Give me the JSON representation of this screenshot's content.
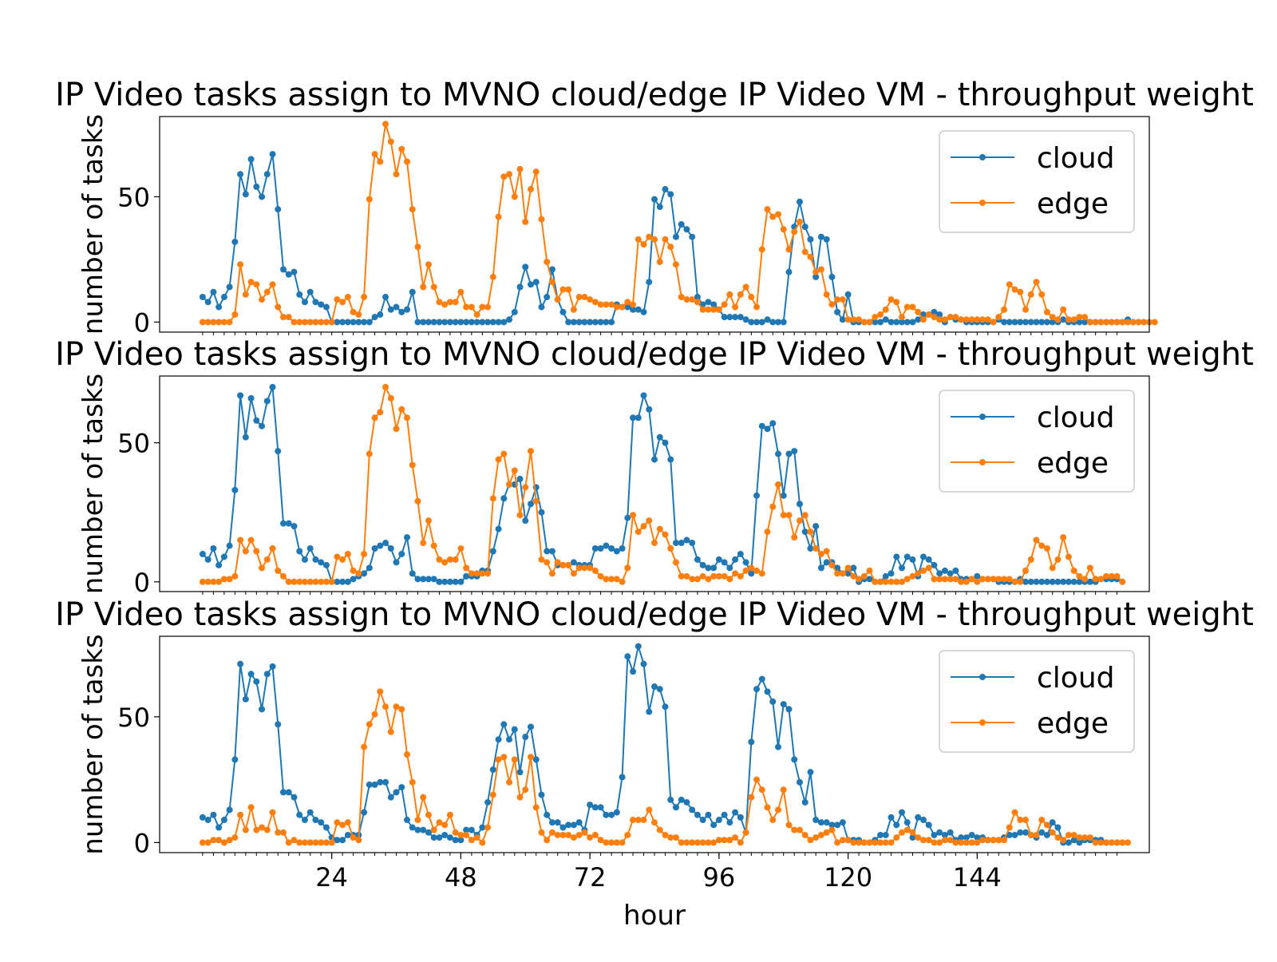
{
  "chart_data": [
    {
      "type": "line",
      "title": "IP Video tasks assign to MVNO cloud/edge IP Video VM - throughput weight",
      "ylabel": "number of tasks",
      "xlabel": "",
      "ylim": [
        -4,
        82
      ],
      "yticks": [
        0,
        50
      ],
      "xlim": [
        -8,
        176
      ],
      "legend": "upper right",
      "series": [
        {
          "name": "cloud",
          "color": "#1f77b4",
          "values": [
            10,
            8,
            12,
            6,
            10,
            14,
            32,
            59,
            51,
            65,
            54,
            50,
            59,
            67,
            45,
            21,
            19,
            20,
            11,
            8,
            12,
            8,
            7,
            6,
            0,
            0,
            0,
            0,
            0,
            0,
            0,
            0,
            2,
            3,
            10,
            5,
            6,
            4,
            5,
            12,
            0,
            0,
            0,
            0,
            0,
            0,
            0,
            0,
            0,
            0,
            0,
            0,
            0,
            0,
            0,
            0,
            0,
            1,
            4,
            14,
            22,
            15,
            16,
            6,
            10,
            21,
            9,
            4,
            0,
            0,
            0,
            0,
            0,
            0,
            0,
            0,
            0,
            7,
            6,
            6,
            5,
            5,
            4,
            16,
            49,
            46,
            53,
            51,
            34,
            39,
            37,
            34,
            10,
            7,
            8,
            7,
            5,
            2,
            2,
            2,
            2,
            1,
            0,
            0,
            0,
            1,
            0,
            0,
            0,
            20,
            38,
            48,
            38,
            33,
            18,
            34,
            33,
            18,
            4,
            1,
            11,
            0,
            0,
            0,
            0,
            0,
            0,
            1,
            0,
            0,
            0,
            0,
            0,
            1,
            3,
            3,
            4,
            3,
            0,
            2,
            1,
            1,
            0,
            0,
            0,
            0,
            0,
            0,
            1,
            0,
            0,
            0,
            0,
            0,
            0,
            0,
            0,
            0,
            0,
            0,
            1,
            0,
            0,
            0,
            0,
            0,
            0,
            0,
            0,
            0,
            0,
            0,
            1,
            0,
            0,
            0
          ]
        },
        {
          "name": "edge",
          "color": "#ff7f0e",
          "values": [
            0,
            0,
            0,
            0,
            0,
            0,
            3,
            23,
            11,
            16,
            15,
            9,
            12,
            15,
            6,
            2,
            2,
            0,
            0,
            0,
            0,
            0,
            0,
            0,
            0,
            9,
            8,
            10,
            4,
            3,
            10,
            49,
            67,
            64,
            79,
            72,
            59,
            69,
            64,
            45,
            30,
            14,
            23,
            14,
            8,
            7,
            8,
            8,
            12,
            6,
            6,
            3,
            6,
            6,
            18,
            42,
            58,
            59,
            50,
            61,
            40,
            53,
            60,
            41,
            24,
            16,
            9,
            13,
            13,
            5,
            10,
            10,
            9,
            8,
            7,
            7,
            7,
            6,
            6,
            8,
            7,
            33,
            31,
            34,
            33,
            24,
            33,
            30,
            23,
            10,
            9,
            9,
            8,
            5,
            5,
            5,
            5,
            7,
            11,
            6,
            11,
            14,
            10,
            6,
            29,
            45,
            42,
            43,
            37,
            29,
            36,
            40,
            28,
            26,
            20,
            21,
            11,
            7,
            9,
            9,
            1,
            1,
            1,
            0,
            0,
            2,
            3,
            5,
            9,
            8,
            2,
            6,
            6,
            4,
            1,
            3,
            2,
            1,
            1,
            2,
            2,
            1,
            1,
            1,
            1,
            1,
            1,
            0,
            2,
            5,
            15,
            13,
            12,
            5,
            11,
            16,
            11,
            4,
            2,
            1,
            5,
            1,
            1,
            2,
            2,
            0,
            0,
            0,
            0,
            0,
            0,
            0,
            0,
            0,
            0,
            0,
            0,
            0
          ]
        }
      ]
    },
    {
      "type": "line",
      "title": "IP Video tasks assign to MVNO cloud/edge IP Video VM - throughput weight",
      "ylabel": "number of tasks",
      "xlabel": "",
      "ylim": [
        -3.5,
        74
      ],
      "yticks": [
        0,
        50
      ],
      "xlim": [
        -8,
        176
      ],
      "legend": "upper right",
      "series": [
        {
          "name": "cloud",
          "color": "#1f77b4",
          "values": [
            10,
            8,
            12,
            6,
            9,
            13,
            33,
            67,
            52,
            66,
            58,
            56,
            65,
            70,
            47,
            21,
            21,
            20,
            11,
            8,
            12,
            8,
            7,
            6,
            0,
            0,
            0,
            0,
            1,
            2,
            3,
            5,
            12,
            13,
            14,
            12,
            7,
            10,
            16,
            3,
            1,
            1,
            1,
            1,
            0,
            0,
            0,
            0,
            0,
            2,
            2,
            2,
            4,
            4,
            11,
            19,
            30,
            35,
            35,
            37,
            22,
            28,
            34,
            25,
            11,
            11,
            6,
            6,
            6,
            7,
            6,
            6,
            6,
            12,
            12,
            13,
            12,
            11,
            12,
            23,
            59,
            59,
            67,
            62,
            44,
            52,
            50,
            44,
            14,
            14,
            15,
            14,
            8,
            6,
            5,
            5,
            8,
            7,
            5,
            8,
            10,
            7,
            3,
            31,
            56,
            55,
            57,
            46,
            31,
            46,
            47,
            28,
            18,
            12,
            20,
            5,
            7,
            7,
            5,
            3,
            3,
            5,
            0,
            1,
            1,
            0,
            0,
            2,
            3,
            9,
            5,
            9,
            8,
            2,
            9,
            8,
            6,
            3,
            4,
            3,
            4,
            1,
            1,
            1,
            2,
            1,
            1,
            1,
            0,
            0,
            0,
            0,
            1,
            0,
            0,
            0,
            0,
            0,
            0,
            0,
            0,
            0,
            0,
            0,
            0,
            0,
            0,
            1,
            1,
            1,
            1,
            0
          ]
        },
        {
          "name": "edge",
          "color": "#ff7f0e",
          "values": [
            0,
            0,
            0,
            0,
            1,
            1,
            2,
            15,
            11,
            15,
            11,
            5,
            8,
            12,
            4,
            2,
            0,
            0,
            0,
            0,
            0,
            0,
            0,
            0,
            0,
            9,
            8,
            10,
            4,
            3,
            10,
            46,
            59,
            61,
            70,
            66,
            55,
            62,
            59,
            42,
            29,
            14,
            22,
            13,
            8,
            7,
            8,
            8,
            12,
            5,
            3,
            3,
            3,
            3,
            30,
            44,
            46,
            35,
            40,
            24,
            34,
            47,
            29,
            8,
            7,
            3,
            7,
            6,
            6,
            3,
            5,
            5,
            5,
            4,
            2,
            1,
            1,
            1,
            0,
            5,
            24,
            18,
            20,
            22,
            14,
            19,
            17,
            12,
            7,
            2,
            2,
            1,
            1,
            2,
            1,
            2,
            2,
            2,
            1,
            3,
            2,
            4,
            5,
            4,
            3,
            18,
            27,
            35,
            24,
            24,
            16,
            22,
            24,
            18,
            12,
            10,
            11,
            6,
            3,
            3,
            5,
            2,
            1,
            2,
            4,
            0,
            0,
            0,
            0,
            0,
            0,
            1,
            2,
            3,
            4,
            5,
            1,
            1,
            1,
            1,
            1,
            0,
            0,
            1,
            0,
            1,
            1,
            1,
            1,
            1,
            1,
            0,
            0,
            4,
            8,
            15,
            13,
            12,
            5,
            8,
            16,
            9,
            4,
            2,
            1,
            5,
            1,
            1,
            2,
            2,
            2,
            0
          ]
        }
      ]
    },
    {
      "type": "line",
      "title": "IP Video tasks assign to MVNO cloud/edge IP Video VM - throughput weight",
      "ylabel": "number of tasks",
      "xlabel": "hour",
      "ylim": [
        -4,
        82
      ],
      "yticks": [
        0,
        50
      ],
      "xticks": [
        24,
        48,
        72,
        96,
        120,
        144
      ],
      "xlim": [
        -8,
        176
      ],
      "legend": "upper right",
      "series": [
        {
          "name": "cloud",
          "color": "#1f77b4",
          "values": [
            10,
            9,
            11,
            6,
            9,
            13,
            33,
            71,
            57,
            67,
            64,
            53,
            67,
            70,
            47,
            20,
            20,
            18,
            11,
            9,
            12,
            9,
            8,
            6,
            2,
            1,
            1,
            3,
            3,
            3,
            12,
            23,
            23,
            24,
            24,
            18,
            20,
            22,
            9,
            6,
            5,
            5,
            4,
            2,
            2,
            3,
            2,
            1,
            1,
            5,
            5,
            3,
            6,
            16,
            29,
            41,
            47,
            41,
            45,
            28,
            42,
            46,
            33,
            19,
            11,
            8,
            8,
            6,
            7,
            7,
            8,
            5,
            15,
            14,
            14,
            11,
            11,
            12,
            26,
            74,
            68,
            78,
            71,
            52,
            62,
            61,
            54,
            17,
            14,
            17,
            16,
            13,
            11,
            9,
            11,
            7,
            9,
            11,
            8,
            12,
            10,
            4,
            40,
            61,
            65,
            60,
            56,
            38,
            55,
            53,
            33,
            24,
            16,
            28,
            9,
            8,
            8,
            7,
            7,
            8,
            1,
            1,
            1,
            0,
            0,
            1,
            3,
            3,
            10,
            7,
            12,
            8,
            2,
            10,
            9,
            7,
            3,
            4,
            3,
            4,
            1,
            2,
            2,
            3,
            2,
            2,
            1,
            1,
            1,
            2,
            3,
            3,
            4,
            4,
            3,
            2,
            4,
            3,
            8,
            6,
            0,
            0,
            1,
            0,
            1,
            1,
            1,
            1,
            0,
            0,
            0,
            0
          ]
        },
        {
          "name": "edge",
          "color": "#ff7f0e",
          "values": [
            0,
            0,
            1,
            1,
            0,
            1,
            2,
            11,
            5,
            14,
            5,
            6,
            5,
            12,
            4,
            4,
            0,
            1,
            0,
            0,
            0,
            0,
            0,
            0,
            0,
            8,
            7,
            8,
            2,
            1,
            38,
            47,
            51,
            60,
            54,
            44,
            54,
            53,
            35,
            24,
            9,
            18,
            11,
            5,
            8,
            7,
            11,
            4,
            3,
            3,
            1,
            2,
            0,
            6,
            19,
            33,
            34,
            24,
            33,
            18,
            21,
            34,
            14,
            4,
            1,
            4,
            3,
            3,
            3,
            2,
            3,
            4,
            2,
            3,
            1,
            0,
            0,
            0,
            0,
            3,
            9,
            9,
            9,
            13,
            8,
            5,
            3,
            2,
            2,
            0,
            0,
            0,
            0,
            0,
            0,
            0,
            1,
            1,
            1,
            2,
            0,
            4,
            18,
            25,
            21,
            14,
            9,
            13,
            21,
            7,
            5,
            5,
            3,
            1,
            2,
            3,
            4,
            5,
            0,
            1,
            1,
            0,
            0,
            0,
            0,
            0,
            0,
            0,
            0,
            2,
            4,
            5,
            4,
            2,
            1,
            1,
            0,
            0,
            1,
            1,
            0,
            0,
            0,
            0,
            0,
            1,
            1,
            1,
            1,
            1,
            6,
            12,
            9,
            9,
            3,
            3,
            9,
            7,
            4,
            2,
            1,
            3,
            3,
            2,
            2,
            2,
            0,
            0,
            0,
            0,
            0,
            0,
            0
          ]
        }
      ]
    }
  ]
}
